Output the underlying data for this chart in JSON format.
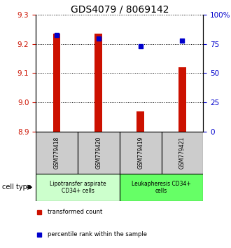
{
  "title": "GDS4079 / 8069142",
  "samples": [
    "GSM779418",
    "GSM779420",
    "GSM779419",
    "GSM779421"
  ],
  "bar_values": [
    9.235,
    9.235,
    8.97,
    9.12
  ],
  "percentile_values": [
    83,
    80,
    73,
    78
  ],
  "bar_color": "#cc1100",
  "percentile_color": "#0000cc",
  "ylim_left": [
    8.9,
    9.3
  ],
  "ylim_right": [
    0,
    100
  ],
  "yticks_left": [
    8.9,
    9.0,
    9.1,
    9.2,
    9.3
  ],
  "yticks_right": [
    0,
    25,
    50,
    75,
    100
  ],
  "ytick_labels_right": [
    "0",
    "25",
    "50",
    "75",
    "100%"
  ],
  "groups": [
    {
      "label": "Lipotransfer aspirate\nCD34+ cells",
      "color": "#ccffcc",
      "samples": [
        0,
        1
      ]
    },
    {
      "label": "Leukapheresis CD34+\ncells",
      "color": "#66ff66",
      "samples": [
        2,
        3
      ]
    }
  ],
  "cell_type_label": "cell type",
  "legend_items": [
    {
      "label": "transformed count",
      "color": "#cc1100"
    },
    {
      "label": "percentile rank within the sample",
      "color": "#0000cc"
    }
  ],
  "sample_box_color": "#cccccc",
  "bar_width": 0.18,
  "title_fontsize": 10,
  "tick_fontsize": 7.5
}
